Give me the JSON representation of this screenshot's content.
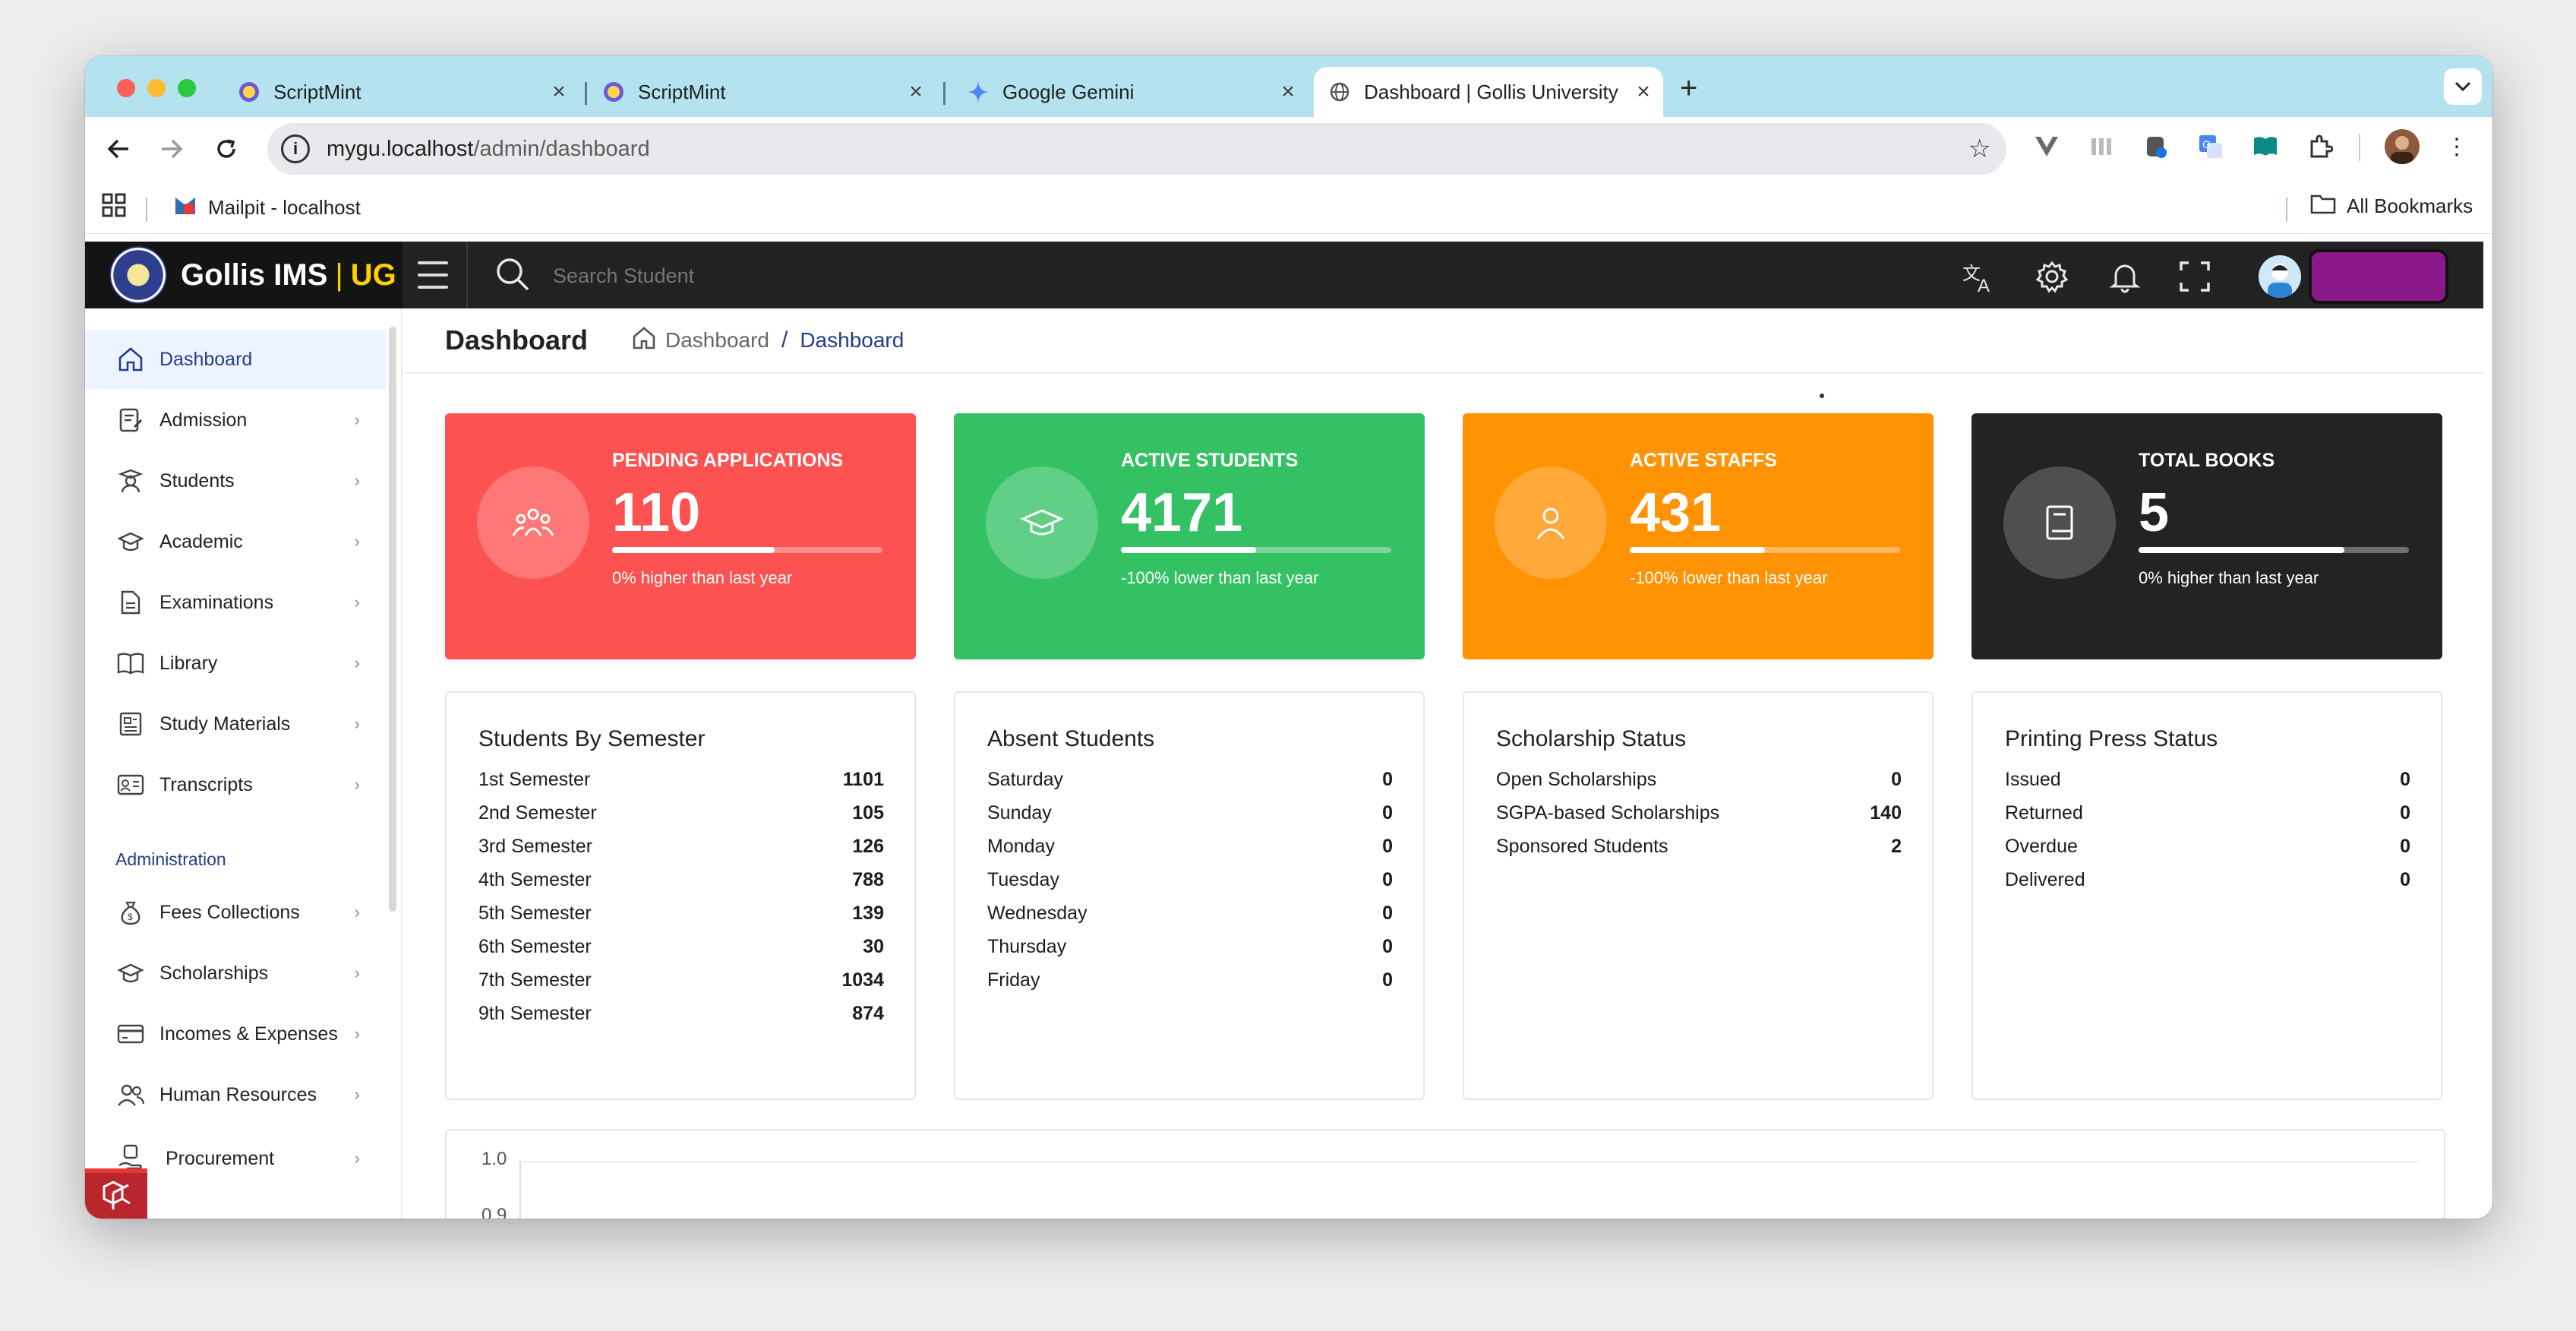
{
  "browser": {
    "tabs": [
      {
        "title": "ScriptMint",
        "active": false
      },
      {
        "title": "ScriptMint",
        "active": false
      },
      {
        "title": "Google Gemini",
        "active": false
      },
      {
        "title": "Dashboard | Gollis University",
        "active": true
      }
    ],
    "url_host": "mygu.localhost",
    "url_path": "/admin/dashboard",
    "bookmarks": [
      {
        "label": "Mailpit - localhost"
      }
    ],
    "all_bookmarks_label": "All Bookmarks"
  },
  "app": {
    "brand_name": "Gollis IMS",
    "brand_separator": "|",
    "brand_suffix": "UG",
    "search_placeholder": "Search Student"
  },
  "sidebar": {
    "items": [
      {
        "label": "Dashboard",
        "icon": "home-icon",
        "active": true
      },
      {
        "label": "Admission",
        "icon": "document-edit-icon"
      },
      {
        "label": "Students",
        "icon": "student-icon"
      },
      {
        "label": "Academic",
        "icon": "graduation-cap-icon"
      },
      {
        "label": "Examinations",
        "icon": "file-icon"
      },
      {
        "label": "Library",
        "icon": "book-open-icon"
      },
      {
        "label": "Study Materials",
        "icon": "materials-icon"
      },
      {
        "label": "Transcripts",
        "icon": "id-card-icon"
      }
    ],
    "section_label": "Administration",
    "admin_items": [
      {
        "label": "Fees Collections",
        "icon": "money-bag-icon"
      },
      {
        "label": "Scholarships",
        "icon": "graduation-cap-icon"
      },
      {
        "label": "Incomes & Expenses",
        "icon": "credit-card-icon"
      },
      {
        "label": "Human Resources",
        "icon": "users-icon"
      },
      {
        "label": "Procurement",
        "icon": "procurement-icon"
      }
    ]
  },
  "page": {
    "title": "Dashboard",
    "breadcrumb": [
      "Dashboard",
      "Dashboard"
    ]
  },
  "stats": [
    {
      "title": "PENDING APPLICATIONS",
      "value": "110",
      "note": "0% higher than last year",
      "progress": 0.6,
      "color": "#fc5352",
      "circle": "#fd7877",
      "icon": "users-icon"
    },
    {
      "title": "ACTIVE STUDENTS",
      "value": "4171",
      "note": "-100% lower than last year",
      "progress": 0.5,
      "color": "#34c163",
      "circle": "#62cf86",
      "icon": "graduation-cap-icon"
    },
    {
      "title": "ACTIVE STAFFS",
      "value": "431",
      "note": "-100% lower than last year",
      "progress": 0.5,
      "color": "#ff9304",
      "circle": "#ffa93a",
      "icon": "user-icon"
    },
    {
      "title": "TOTAL BOOKS",
      "value": "5",
      "note": "0% higher than last year",
      "progress": 0.76,
      "color": "#232323",
      "circle": "#4f4f4f",
      "icon": "book-icon"
    }
  ],
  "cards": [
    {
      "title": "Students By Semester",
      "rows": [
        {
          "label": "1st Semester",
          "value": "1101"
        },
        {
          "label": "2nd Semester",
          "value": "105"
        },
        {
          "label": "3rd Semester",
          "value": "126"
        },
        {
          "label": "4th Semester",
          "value": "788"
        },
        {
          "label": "5th Semester",
          "value": "139"
        },
        {
          "label": "6th Semester",
          "value": "30"
        },
        {
          "label": "7th Semester",
          "value": "1034"
        },
        {
          "label": "9th Semester",
          "value": "874"
        }
      ]
    },
    {
      "title": "Absent Students",
      "rows": [
        {
          "label": "Saturday",
          "value": "0"
        },
        {
          "label": "Sunday",
          "value": "0"
        },
        {
          "label": "Monday",
          "value": "0"
        },
        {
          "label": "Tuesday",
          "value": "0"
        },
        {
          "label": "Wednesday",
          "value": "0"
        },
        {
          "label": "Thursday",
          "value": "0"
        },
        {
          "label": "Friday",
          "value": "0"
        }
      ]
    },
    {
      "title": "Scholarship Status",
      "rows": [
        {
          "label": "Open Scholarships",
          "value": "0"
        },
        {
          "label": "SGPA-based Scholarships",
          "value": "140"
        },
        {
          "label": "Sponsored Students",
          "value": "2"
        }
      ]
    },
    {
      "title": "Printing Press Status",
      "rows": [
        {
          "label": "Issued",
          "value": "0"
        },
        {
          "label": "Returned",
          "value": "0"
        },
        {
          "label": "Overdue",
          "value": "0"
        },
        {
          "label": "Delivered",
          "value": "0"
        }
      ]
    }
  ],
  "chart": {
    "y_ticks": [
      "1.0",
      "0.9"
    ]
  },
  "accent": "#213d8c"
}
